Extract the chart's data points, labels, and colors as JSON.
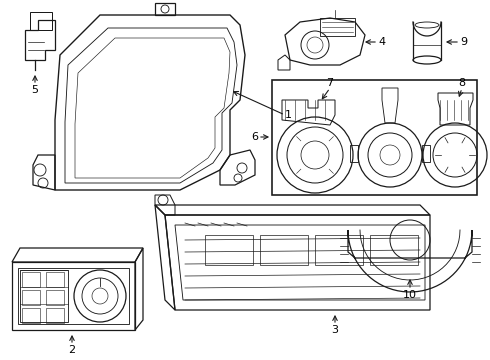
{
  "background_color": "#ffffff",
  "line_color": "#1a1a1a",
  "lw": 0.9,
  "fs": 8,
  "fig_w": 4.9,
  "fig_h": 3.6,
  "dpi": 100
}
